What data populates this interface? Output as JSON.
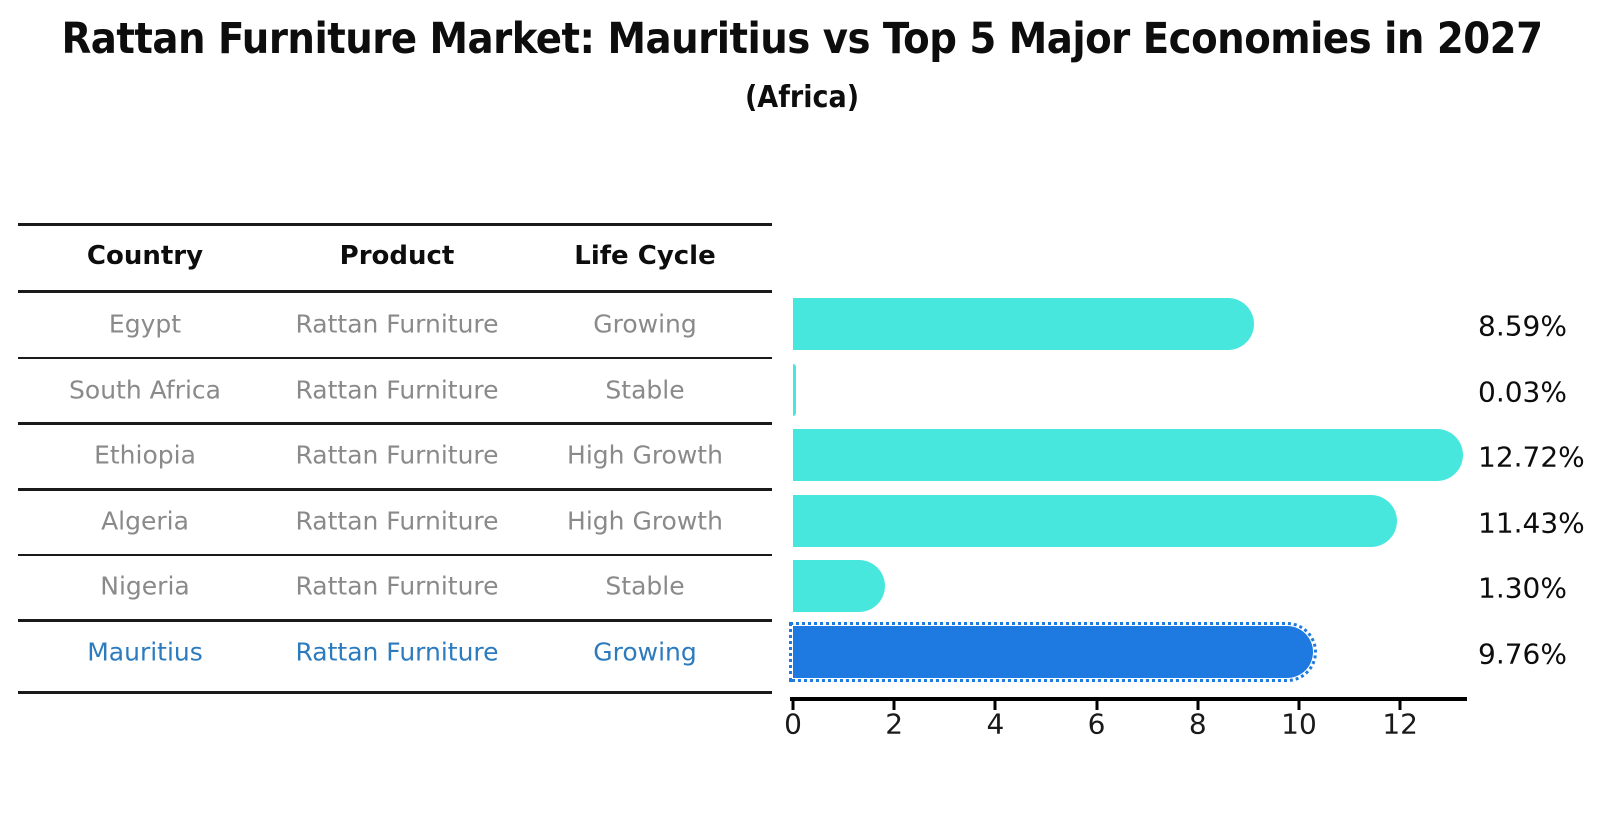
{
  "title": "Rattan Furniture Market: Mauritius vs Top 5 Major Economies in 2027",
  "subtitle": "(Africa)",
  "table": {
    "headers": [
      "Country",
      "Product",
      "Life Cycle"
    ],
    "rows": [
      {
        "country": "Egypt",
        "product": "Rattan Furniture",
        "life_cycle": "Growing",
        "highlighted": false
      },
      {
        "country": "South Africa",
        "product": "Rattan Furniture",
        "life_cycle": "Stable",
        "highlighted": false
      },
      {
        "country": "Ethiopia",
        "product": "Rattan Furniture",
        "life_cycle": "High Growth",
        "highlighted": false
      },
      {
        "country": "Algeria",
        "product": "Rattan Furniture",
        "life_cycle": "High Growth",
        "highlighted": false
      },
      {
        "country": "Nigeria",
        "product": "Rattan Furniture",
        "life_cycle": "Stable",
        "highlighted": false
      },
      {
        "country": "Mauritius",
        "product": "Rattan Furniture",
        "life_cycle": "Growing",
        "highlighted": true
      }
    ]
  },
  "chart_data": {
    "type": "bar",
    "orientation": "horizontal",
    "title": "Rattan Furniture Market: Mauritius vs Top 5 Major Economies in 2027",
    "subtitle": "(Africa)",
    "categories": [
      "Egypt",
      "South Africa",
      "Ethiopia",
      "Algeria",
      "Nigeria",
      "Mauritius"
    ],
    "values": [
      8.59,
      0.03,
      12.72,
      11.43,
      1.3,
      9.76
    ],
    "value_labels": [
      "8.59%",
      "0.03%",
      "12.72%",
      "11.43%",
      "1.30%",
      "9.76%"
    ],
    "highlight_category": "Mauritius",
    "highlight_index": 5,
    "xticks": [
      0,
      2,
      4,
      6,
      8,
      10,
      12
    ],
    "xlim": [
      0,
      13.37
    ],
    "grid": false,
    "legend": false,
    "bar_color": "#48E7DE",
    "highlight_bar_color": "#1E79E0"
  },
  "colors": {
    "background": "#FFFFFF",
    "bar_default": "#48E7DE",
    "bar_highlight": "#1E79E0",
    "highlight_text": "#2B7BBE",
    "table_text": "#8A8A8A",
    "heading_text": "#0D0D0D",
    "axis": "#000000"
  }
}
